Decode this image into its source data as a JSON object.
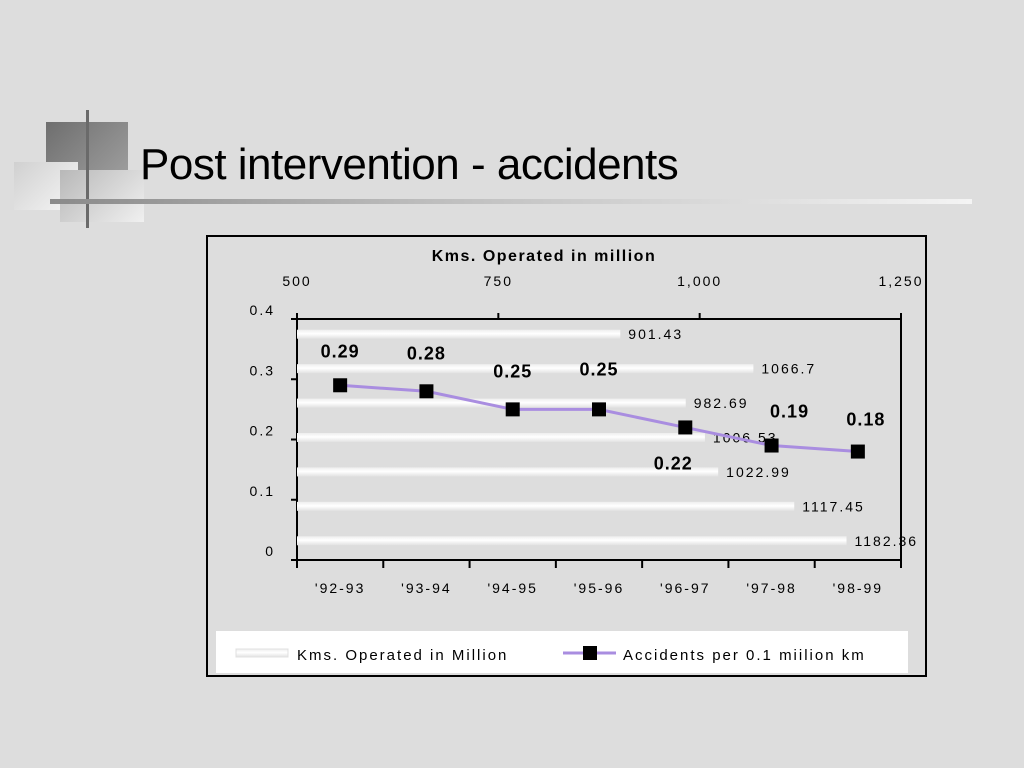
{
  "slide": {
    "title": "Post intervention - accidents"
  },
  "chart_data": {
    "type": "bar+line",
    "categories": [
      "'92-93",
      "'93-94",
      "'94-95",
      "'95-96",
      "'96-97",
      "'97-98",
      "'98-99"
    ],
    "bar_series": {
      "name": "Kms. Operated in Million",
      "orientation": "horizontal",
      "values": [
        901.43,
        1066.7,
        982.69,
        1006.53,
        1022.99,
        1117.45,
        1182.36
      ],
      "value_labels": [
        "901.43",
        "1066.7",
        "982.69",
        "1006.53",
        "1022.99",
        "1117.45",
        "1182.36"
      ],
      "axis_title": "Kms. Operated in million",
      "axis_ticks": [
        "500",
        "750",
        "1,000",
        "1,250"
      ],
      "axis_range": [
        500,
        1250
      ]
    },
    "line_series": {
      "name": "Accidents per 0.1 miilion km",
      "values": [
        0.29,
        0.28,
        0.25,
        0.25,
        0.22,
        0.19,
        0.18
      ],
      "value_labels": [
        "0.29",
        "0.28",
        "0.25",
        "0.25",
        "0.22",
        "0.19",
        "0.18"
      ],
      "axis_ticks": [
        "0",
        "0.1",
        "0.2",
        "0.3",
        "0.4"
      ],
      "axis_range": [
        0,
        0.4
      ],
      "color": "#a98de0"
    },
    "legend_position": "bottom"
  }
}
